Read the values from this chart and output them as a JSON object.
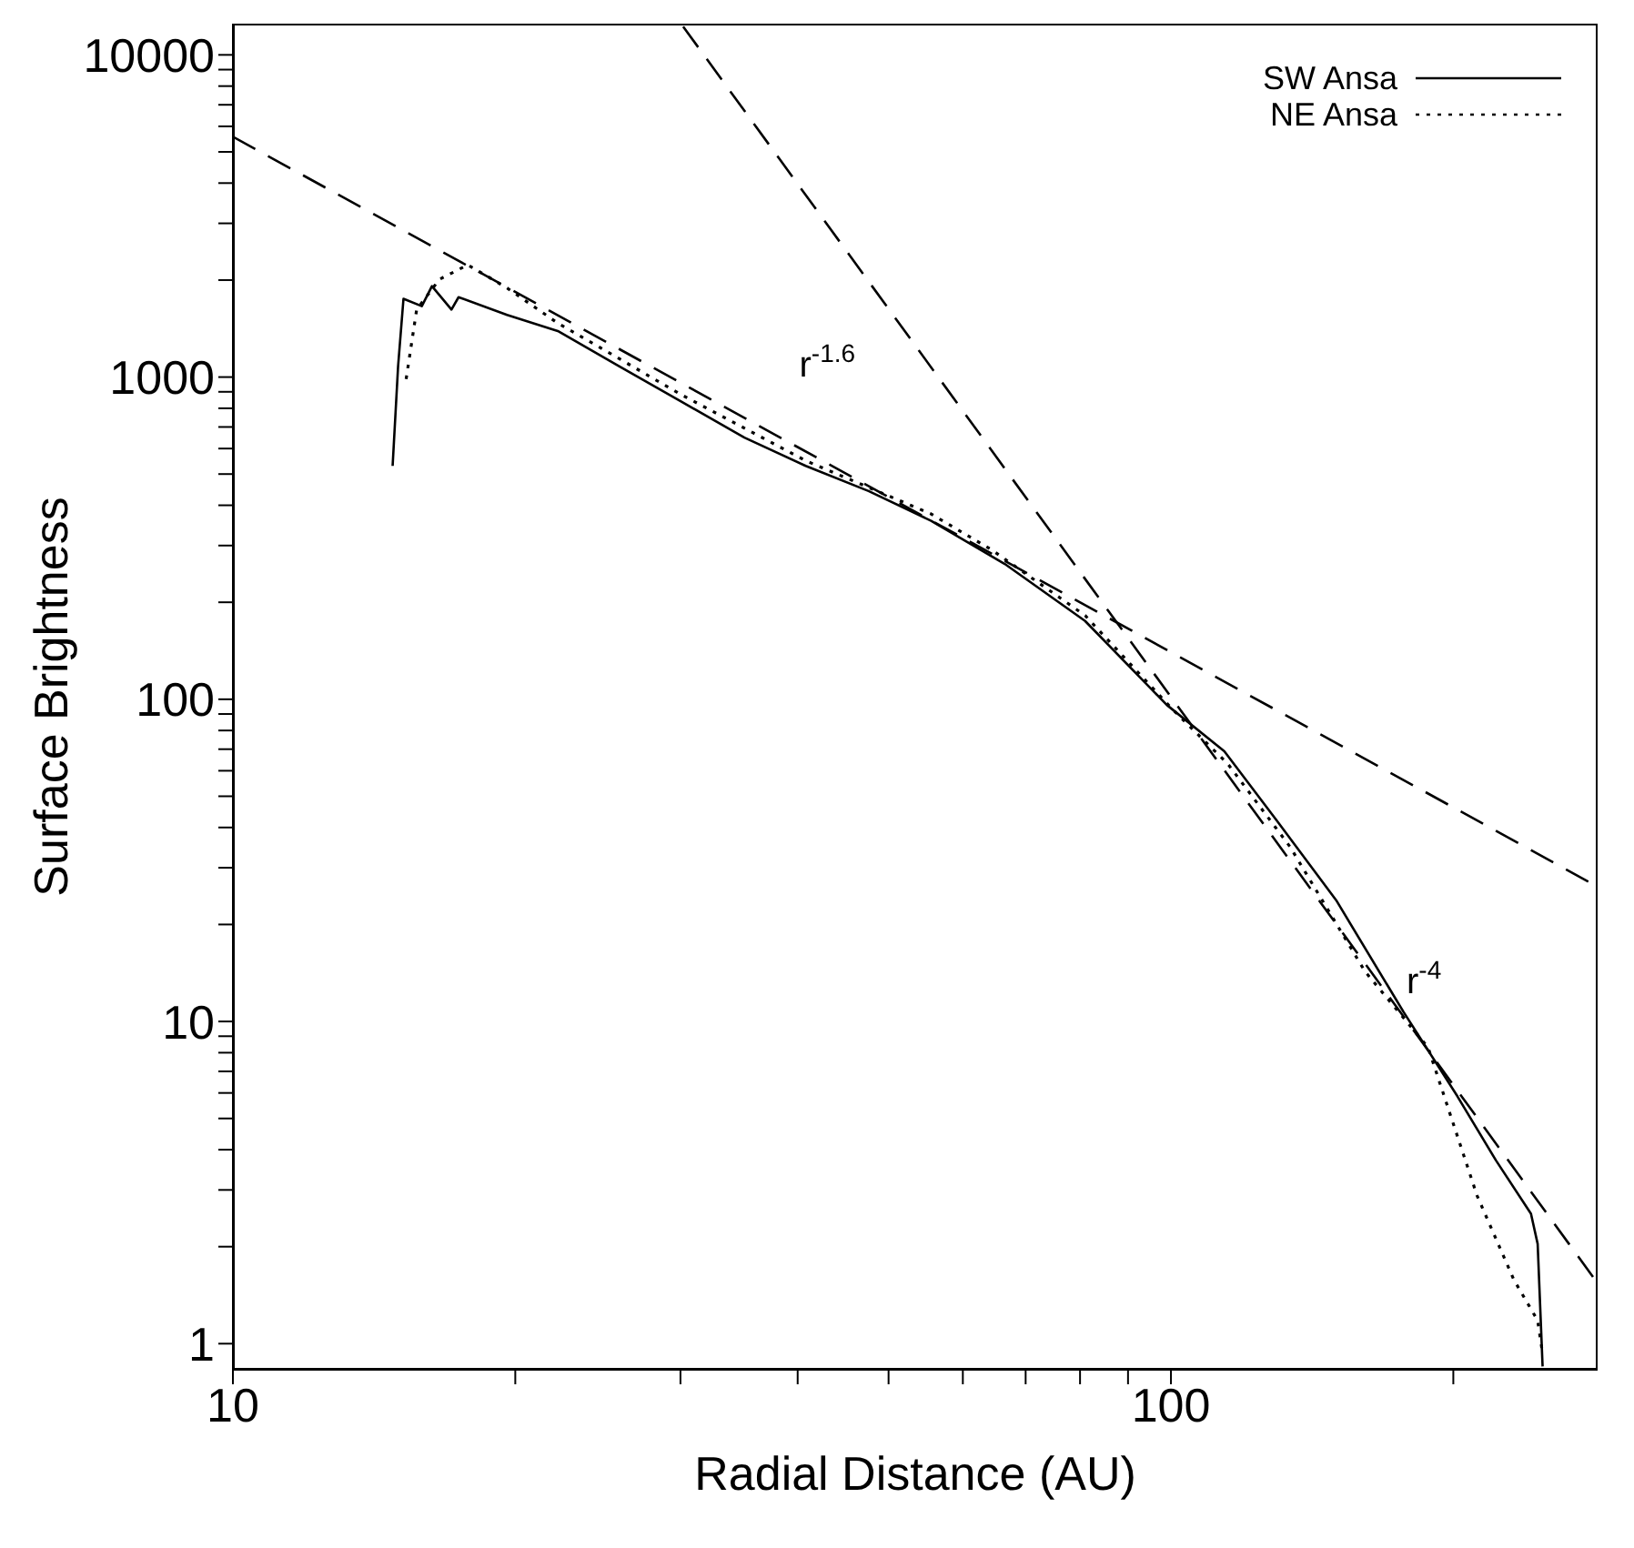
{
  "chart_data": {
    "type": "line",
    "xlabel": "Radial Distance (AU)",
    "ylabel": "Surface Brightness",
    "log": "xy",
    "xlim": [
      10,
      285
    ],
    "ylim": [
      0.83,
      12500
    ],
    "xticks": [
      10,
      {
        "value": 20,
        "label": null
      },
      {
        "value": 30,
        "label": null
      },
      {
        "value": 40,
        "label": null
      },
      {
        "value": 50,
        "label": null
      },
      {
        "value": 60,
        "label": null
      },
      {
        "value": 70,
        "label": null
      },
      {
        "value": 80,
        "label": null
      },
      {
        "value": 90,
        "label": null
      },
      100,
      {
        "value": 200,
        "label": null
      }
    ],
    "yticks": [
      1,
      {
        "value": 2,
        "label": null
      },
      {
        "value": 3,
        "label": null
      },
      {
        "value": 4,
        "label": null
      },
      {
        "value": 5,
        "label": null
      },
      {
        "value": 6,
        "label": null
      },
      {
        "value": 7,
        "label": null
      },
      {
        "value": 8,
        "label": null
      },
      {
        "value": 9,
        "label": null
      },
      10,
      {
        "value": 20,
        "label": null
      },
      {
        "value": 30,
        "label": null
      },
      {
        "value": 40,
        "label": null
      },
      {
        "value": 50,
        "label": null
      },
      {
        "value": 60,
        "label": null
      },
      {
        "value": 70,
        "label": null
      },
      {
        "value": 80,
        "label": null
      },
      {
        "value": 90,
        "label": null
      },
      100,
      {
        "value": 200,
        "label": null
      },
      {
        "value": 300,
        "label": null
      },
      {
        "value": 400,
        "label": null
      },
      {
        "value": 500,
        "label": null
      },
      {
        "value": 600,
        "label": null
      },
      {
        "value": 700,
        "label": null
      },
      {
        "value": 800,
        "label": null
      },
      {
        "value": 900,
        "label": null
      },
      1000,
      {
        "value": 2000,
        "label": null
      },
      {
        "value": 3000,
        "label": null
      },
      {
        "value": 4000,
        "label": null
      },
      {
        "value": 5000,
        "label": null
      },
      {
        "value": 6000,
        "label": null
      },
      {
        "value": 7000,
        "label": null
      },
      {
        "value": 8000,
        "label": null
      },
      {
        "value": 9000,
        "label": null
      },
      10000
    ],
    "legend": "top right",
    "marker": "none",
    "series": [
      {
        "name": "SW Ansa",
        "color": "#000000",
        "line_style": "solid",
        "x": [
          14.8,
          15.0,
          15.2,
          15.9,
          16.3,
          17.1,
          17.4,
          19.6,
          22.2,
          25.8,
          30.1,
          35.1,
          40.8,
          47.6,
          55.5,
          66.5,
          81,
          99,
          114,
          130,
          150,
          177,
          202,
          222,
          242,
          246,
          249
        ],
        "values": [
          530,
          1080,
          1750,
          1660,
          1915,
          1620,
          1770,
          1560,
          1390,
          1080,
          837,
          649,
          530,
          443,
          358,
          263,
          175,
          96,
          69,
          41.6,
          23.8,
          10.7,
          5.86,
          3.71,
          2.53,
          2.04,
          0.85
        ]
      },
      {
        "name": "NE Ansa",
        "color": "#000000",
        "line_style": "dotted",
        "x": [
          15.3,
          15.7,
          16.6,
          17.8,
          19.6,
          22.2,
          30.1,
          40.8,
          55.5,
          64.4,
          81,
          100.5,
          115,
          134,
          161,
          188,
          212,
          232,
          246,
          249
        ],
        "values": [
          986,
          1620,
          2010,
          2230,
          1890,
          1470,
          880,
          550,
          376,
          291,
          182,
          92.7,
          63,
          34.8,
          14.3,
          8.3,
          2.88,
          1.58,
          1.18,
          0.93
        ]
      },
      {
        "color": "#000000",
        "line_style": "dashed",
        "x": [
          10,
          285
        ],
        "values": [
          5570,
          26.2
        ]
      },
      {
        "color": "#000000",
        "line_style": "dashed",
        "x": [
          30.2,
          285
        ],
        "values": [
          12240,
          1.54
        ]
      }
    ],
    "annotations": [
      "r$^{-1.6}$",
      "r$^{-4}$"
    ]
  }
}
